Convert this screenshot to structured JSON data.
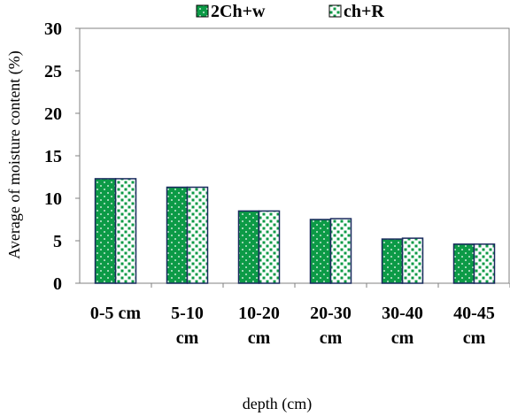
{
  "chart_data": {
    "type": "bar",
    "title": "",
    "xlabel": "depth (cm)",
    "ylabel": "Average of moisture content (%)",
    "ylim": [
      0,
      30
    ],
    "yticks": [
      "0",
      "5",
      "10",
      "15",
      "20",
      "25",
      "30"
    ],
    "categories": [
      [
        "0-5 cm"
      ],
      [
        "5-10",
        "cm"
      ],
      [
        "10-20",
        "cm"
      ],
      [
        "20-30",
        "cm"
      ],
      [
        "30-40",
        "cm"
      ],
      [
        "40-45",
        "cm"
      ]
    ],
    "series": [
      {
        "name": "2Ch+w",
        "values": [
          12.3,
          11.3,
          8.5,
          7.5,
          5.2,
          4.6
        ],
        "color": "#0c9a46",
        "pattern": "sparse-white-dots"
      },
      {
        "name": "ch+R",
        "values": [
          12.3,
          11.3,
          8.5,
          7.6,
          5.3,
          4.6
        ],
        "color": "#ffffff",
        "pattern": "green-squares"
      }
    ],
    "grid": false,
    "legend": "top"
  }
}
